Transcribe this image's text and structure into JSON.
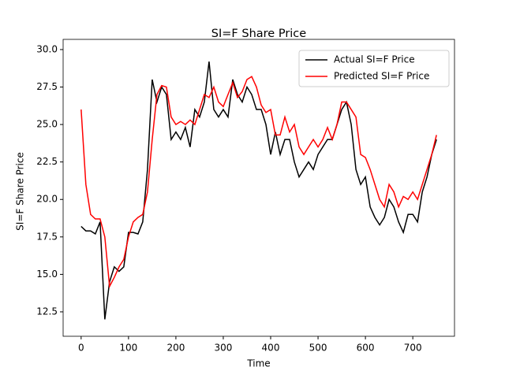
{
  "chart_data": {
    "type": "line",
    "title": "SI=F Share Price",
    "xlabel": "Time",
    "ylabel": "SI=F Share Price",
    "x": [
      0,
      10,
      20,
      30,
      40,
      50,
      60,
      70,
      80,
      90,
      100,
      110,
      120,
      130,
      140,
      150,
      160,
      170,
      180,
      190,
      200,
      210,
      220,
      230,
      240,
      250,
      260,
      270,
      280,
      290,
      300,
      310,
      320,
      330,
      340,
      350,
      360,
      370,
      380,
      390,
      400,
      410,
      420,
      430,
      440,
      450,
      460,
      470,
      480,
      490,
      500,
      510,
      520,
      530,
      540,
      550,
      560,
      570,
      580,
      590,
      600,
      610,
      620,
      630,
      640,
      650,
      660,
      670,
      680,
      690,
      700,
      710,
      720,
      730,
      740,
      750
    ],
    "series": [
      {
        "name": "Actual SI=F Price",
        "color": "#000000",
        "values": [
          18.2,
          17.9,
          17.9,
          17.7,
          18.5,
          12.0,
          14.5,
          15.5,
          15.2,
          15.5,
          17.8,
          17.8,
          17.7,
          18.5,
          22.0,
          28.0,
          26.5,
          27.5,
          27.0,
          24.0,
          24.5,
          24.0,
          24.8,
          23.5,
          26.0,
          25.5,
          26.5,
          29.2,
          26.0,
          25.5,
          26.0,
          25.5,
          28.0,
          27.0,
          26.5,
          27.5,
          27.0,
          26.0,
          26.0,
          25.0,
          23.0,
          24.5,
          23.0,
          24.0,
          24.0,
          22.5,
          21.5,
          22.0,
          22.5,
          22.0,
          23.0,
          23.5,
          24.0,
          24.0,
          25.0,
          26.0,
          26.5,
          25.0,
          22.0,
          21.0,
          21.5,
          19.5,
          18.8,
          18.3,
          18.8,
          20.0,
          19.5,
          18.5,
          17.8,
          19.0,
          19.0,
          18.5,
          20.5,
          21.5,
          23.0,
          24.0
        ]
      },
      {
        "name": "Predicted SI=F Price",
        "color": "#ff0000",
        "values": [
          26.0,
          21.0,
          19.0,
          18.7,
          18.7,
          17.5,
          14.2,
          14.8,
          15.5,
          16.0,
          17.5,
          18.5,
          18.8,
          19.0,
          20.5,
          24.0,
          27.0,
          27.6,
          27.5,
          25.5,
          25.0,
          25.2,
          25.0,
          25.3,
          25.0,
          26.0,
          27.0,
          26.8,
          27.5,
          26.5,
          26.2,
          27.0,
          27.8,
          26.8,
          27.2,
          28.0,
          28.2,
          27.5,
          26.3,
          25.8,
          26.0,
          24.3,
          24.3,
          25.5,
          24.5,
          25.0,
          23.5,
          23.0,
          23.5,
          24.0,
          23.5,
          24.0,
          24.8,
          24.0,
          25.0,
          26.5,
          26.5,
          26.0,
          25.5,
          23.0,
          22.8,
          22.0,
          21.0,
          20.0,
          19.5,
          21.0,
          20.5,
          19.5,
          20.2,
          20.0,
          20.5,
          20.0,
          21.0,
          22.0,
          23.0,
          24.3
        ]
      }
    ],
    "xlim": [
      -38,
      788
    ],
    "ylim": [
      10.87,
      30.68
    ],
    "xticks": [
      0,
      100,
      200,
      300,
      400,
      500,
      600,
      700
    ],
    "yticks": [
      12.5,
      {
        "value": 15,
        "label": "15.0"
      },
      17.5,
      {
        "value": 20,
        "label": "20.0"
      },
      22.5,
      {
        "value": 25,
        "label": "25.0"
      },
      27.5,
      {
        "value": 30,
        "label": "30.0"
      }
    ],
    "legend": "upper right"
  }
}
